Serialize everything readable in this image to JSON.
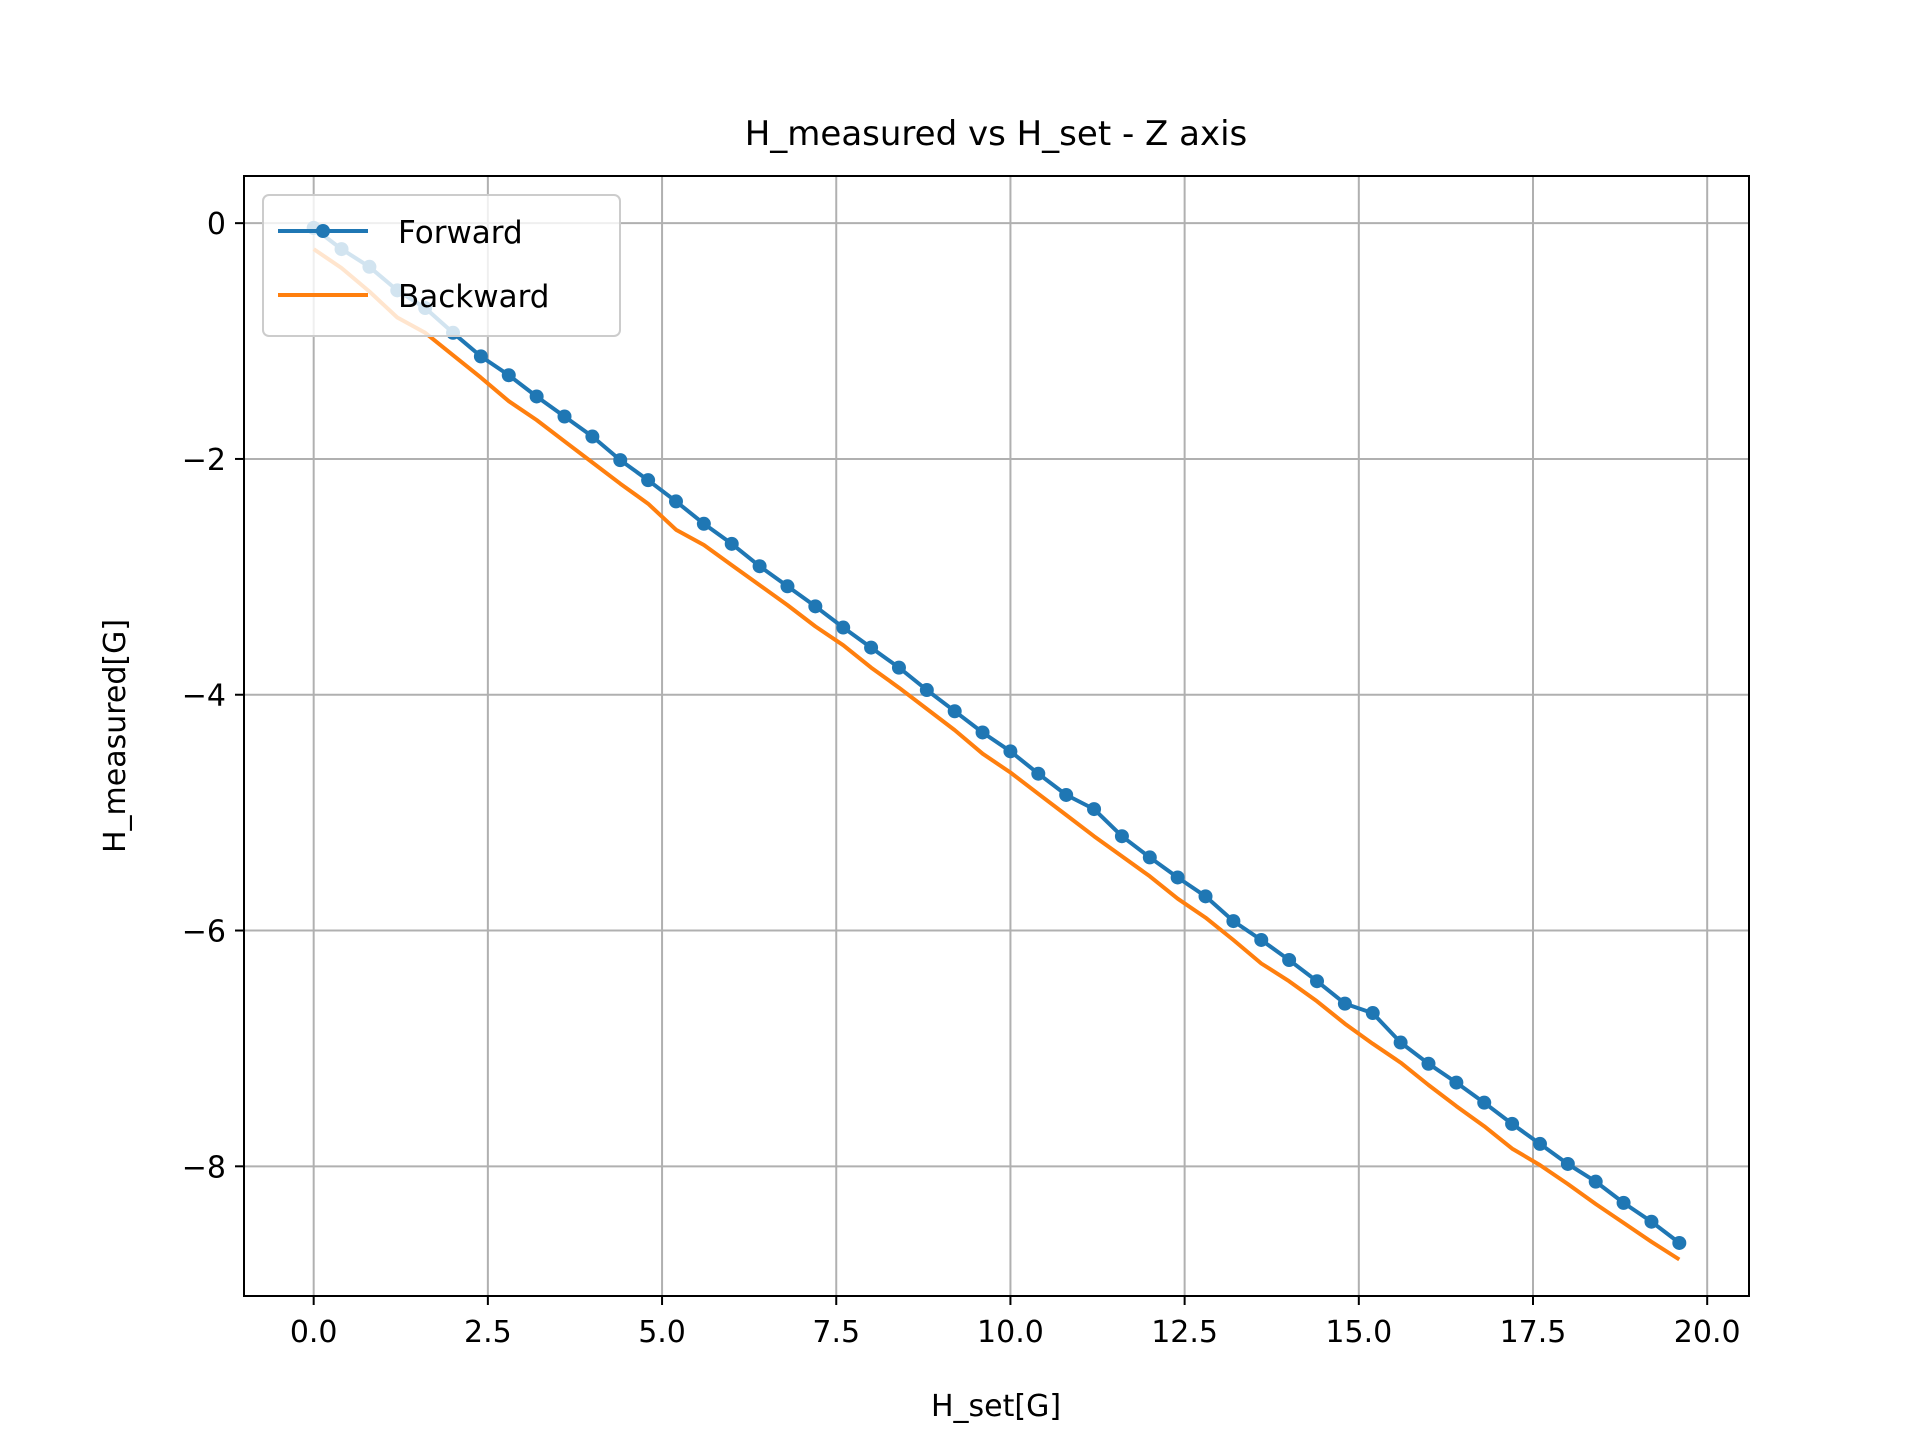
{
  "chart_data": {
    "type": "line",
    "title": "H_measured vs H_set - Z axis",
    "xlabel": "H_set[G]",
    "ylabel": "H_measured[G]",
    "xlim": [
      -1.0,
      20.6
    ],
    "ylim": [
      -9.1,
      0.4
    ],
    "xticks": [
      0.0,
      2.5,
      5.0,
      7.5,
      10.0,
      12.5,
      15.0,
      17.5,
      20.0
    ],
    "xtick_labels": [
      "0.0",
      "2.5",
      "5.0",
      "7.5",
      "10.0",
      "12.5",
      "15.0",
      "17.5",
      "20.0"
    ],
    "yticks": [
      0,
      -2,
      -4,
      -6,
      -8
    ],
    "ytick_labels": [
      "0",
      "−2",
      "−4",
      "−6",
      "−8"
    ],
    "grid": true,
    "legend_position": "upper-left",
    "series": [
      {
        "name": "Forward",
        "color": "#1f77b4",
        "marker": "circle",
        "x": [
          0.0,
          0.4,
          0.8,
          1.2,
          1.6,
          2.0,
          2.4,
          2.8,
          3.2,
          3.6,
          4.0,
          4.4,
          4.8,
          5.2,
          5.6,
          6.0,
          6.4,
          6.8,
          7.2,
          7.6,
          8.0,
          8.4,
          8.8,
          9.2,
          9.6,
          10.0,
          10.4,
          10.8,
          11.2,
          11.6,
          12.0,
          12.4,
          12.8,
          13.2,
          13.6,
          14.0,
          14.4,
          14.8,
          15.2,
          15.6,
          16.0,
          16.4,
          16.8,
          17.2,
          17.6,
          18.0,
          18.4,
          18.8,
          19.2,
          19.6
        ],
        "y": [
          -0.04,
          -0.22,
          -0.37,
          -0.57,
          -0.72,
          -0.93,
          -1.13,
          -1.29,
          -1.47,
          -1.64,
          -1.81,
          -2.01,
          -2.18,
          -2.36,
          -2.55,
          -2.72,
          -2.91,
          -3.08,
          -3.25,
          -3.43,
          -3.6,
          -3.77,
          -3.96,
          -4.14,
          -4.32,
          -4.48,
          -4.67,
          -4.85,
          -4.97,
          -5.2,
          -5.38,
          -5.55,
          -5.71,
          -5.92,
          -6.08,
          -6.25,
          -6.43,
          -6.62,
          -6.7,
          -6.95,
          -7.13,
          -7.29,
          -7.46,
          -7.64,
          -7.81,
          -7.98,
          -8.13,
          -8.31,
          -8.47,
          -8.65
        ]
      },
      {
        "name": "Backward",
        "color": "#ff7f0e",
        "marker": "none",
        "x": [
          0.0,
          0.4,
          0.8,
          1.2,
          1.6,
          2.0,
          2.4,
          2.8,
          3.2,
          3.6,
          4.0,
          4.4,
          4.8,
          5.2,
          5.6,
          6.0,
          6.4,
          6.8,
          7.2,
          7.6,
          8.0,
          8.4,
          8.8,
          9.2,
          9.6,
          10.0,
          10.4,
          10.8,
          11.2,
          11.6,
          12.0,
          12.4,
          12.8,
          13.2,
          13.6,
          14.0,
          14.4,
          14.8,
          15.2,
          15.6,
          16.0,
          16.4,
          16.8,
          17.2,
          17.6,
          18.0,
          18.4,
          18.8,
          19.2,
          19.6
        ],
        "y": [
          -0.22,
          -0.38,
          -0.58,
          -0.8,
          -0.93,
          -1.12,
          -1.31,
          -1.51,
          -1.67,
          -1.85,
          -2.03,
          -2.21,
          -2.38,
          -2.6,
          -2.73,
          -2.9,
          -3.07,
          -3.24,
          -3.42,
          -3.58,
          -3.77,
          -3.94,
          -4.12,
          -4.3,
          -4.5,
          -4.66,
          -4.84,
          -5.02,
          -5.2,
          -5.37,
          -5.54,
          -5.73,
          -5.89,
          -6.08,
          -6.28,
          -6.43,
          -6.6,
          -6.79,
          -6.96,
          -7.12,
          -7.31,
          -7.49,
          -7.66,
          -7.85,
          -7.99,
          -8.15,
          -8.32,
          -8.48,
          -8.64,
          -8.79
        ]
      }
    ]
  }
}
